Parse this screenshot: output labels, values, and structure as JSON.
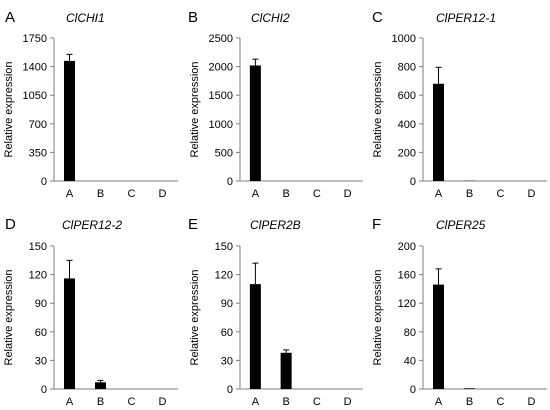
{
  "figure": {
    "colors": {
      "bar": "#000000",
      "axis": "#7f7f7f",
      "errorbar": "#000000",
      "background": "#ffffff"
    }
  },
  "chart_data": [
    {
      "panel": "A",
      "type": "bar",
      "title": "ClCHI1",
      "xlabel": "",
      "ylabel": "Relative expression",
      "categories": [
        "A",
        "B",
        "C",
        "D"
      ],
      "values": [
        1470,
        0,
        0,
        0
      ],
      "errors": [
        80,
        0,
        0,
        0
      ],
      "ylim": [
        0,
        1750
      ],
      "yticks": [
        0,
        350,
        700,
        1050,
        1400,
        1750
      ],
      "grid": false
    },
    {
      "panel": "B",
      "type": "bar",
      "title": "ClCHI2",
      "xlabel": "",
      "ylabel": "Relative expression",
      "categories": [
        "A",
        "B",
        "C",
        "D"
      ],
      "values": [
        2020,
        0,
        0,
        0
      ],
      "errors": [
        110,
        0,
        0,
        0
      ],
      "ylim": [
        0,
        2500
      ],
      "yticks": [
        0,
        500,
        1000,
        1500,
        2000,
        2500
      ],
      "grid": false
    },
    {
      "panel": "C",
      "type": "bar",
      "title": "ClPER12-1",
      "xlabel": "",
      "ylabel": "Relative expression",
      "categories": [
        "A",
        "B",
        "C",
        "D"
      ],
      "values": [
        680,
        2,
        0,
        0
      ],
      "errors": [
        115,
        0,
        0,
        0
      ],
      "ylim": [
        0,
        1000
      ],
      "yticks": [
        0,
        200,
        400,
        600,
        800,
        1000
      ],
      "grid": false
    },
    {
      "panel": "D",
      "type": "bar",
      "title": "ClPER12-2",
      "xlabel": "",
      "ylabel": "Relative expression",
      "categories": [
        "A",
        "B",
        "C",
        "D"
      ],
      "values": [
        116,
        7,
        0,
        0
      ],
      "errors": [
        19,
        2,
        0,
        0
      ],
      "ylim": [
        0,
        150
      ],
      "yticks": [
        0,
        30,
        60,
        90,
        120,
        150
      ],
      "grid": false
    },
    {
      "panel": "E",
      "type": "bar",
      "title": "ClPER2B",
      "xlabel": "",
      "ylabel": "Relative expression",
      "categories": [
        "A",
        "B",
        "C",
        "D"
      ],
      "values": [
        110,
        38,
        0,
        0
      ],
      "errors": [
        22,
        3,
        0,
        0
      ],
      "ylim": [
        0,
        150
      ],
      "yticks": [
        0,
        30,
        60,
        90,
        120,
        150
      ],
      "grid": false
    },
    {
      "panel": "F",
      "type": "bar",
      "title": "ClPER25",
      "xlabel": "",
      "ylabel": "Relative expression",
      "categories": [
        "A",
        "B",
        "C",
        "D"
      ],
      "values": [
        146,
        1,
        0,
        0
      ],
      "errors": [
        22,
        0,
        0,
        0
      ],
      "ylim": [
        0,
        200
      ],
      "yticks": [
        0,
        40,
        80,
        120,
        160,
        200
      ],
      "grid": false
    }
  ]
}
